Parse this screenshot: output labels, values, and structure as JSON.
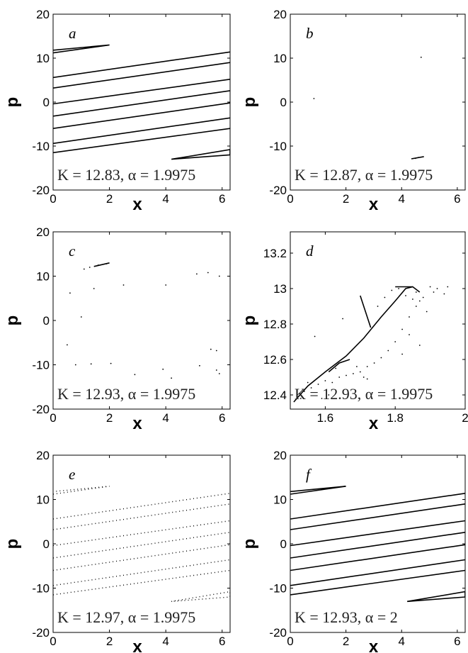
{
  "chart_data": [
    {
      "panel": "a",
      "type": "scatter",
      "xlabel": "x",
      "ylabel": "p",
      "xlim": [
        0,
        6.2832
      ],
      "ylim": [
        -20,
        20
      ],
      "xticks": [
        "0",
        "2",
        "4",
        "6"
      ],
      "yticks": [
        "20",
        "10",
        "0",
        "-10",
        "-20"
      ],
      "annotation": "K = 12.83, α = 1.9975",
      "lines": [
        [
          [
            0,
            11.2
          ],
          [
            2.0,
            13.0
          ],
          [
            0,
            11.8
          ]
        ],
        [
          [
            0,
            5.6
          ],
          [
            6.28,
            11.4
          ]
        ],
        [
          [
            0,
            3.2
          ],
          [
            6.28,
            9.0
          ]
        ],
        [
          [
            0,
            -0.4
          ],
          [
            6.28,
            5.2
          ]
        ],
        [
          [
            0,
            -3.2
          ],
          [
            6.28,
            2.6
          ]
        ],
        [
          [
            0,
            -6.0
          ],
          [
            6.28,
            -0.2
          ]
        ],
        [
          [
            0,
            -9.4
          ],
          [
            6.28,
            -3.6
          ]
        ],
        [
          [
            0,
            -11.5
          ],
          [
            6.28,
            -6.0
          ]
        ],
        [
          [
            4.2,
            -13.0
          ],
          [
            6.28,
            -10.8
          ],
          [
            6.28,
            -12.0
          ],
          [
            4.2,
            -13.0
          ]
        ]
      ],
      "points": []
    },
    {
      "panel": "b",
      "type": "scatter",
      "xlabel": "x",
      "ylabel": "p",
      "xlim": [
        0,
        6.2832
      ],
      "ylim": [
        -20,
        20
      ],
      "xticks": [
        "0",
        "2",
        "4",
        "6"
      ],
      "yticks": [
        "20",
        "10",
        "0",
        "-10",
        "-20"
      ],
      "annotation": "K = 12.87, α = 1.9975",
      "lines": [
        [
          [
            4.35,
            -12.9
          ],
          [
            4.8,
            -12.4
          ]
        ]
      ],
      "points": [
        [
          4.7,
          10.2
        ],
        [
          0.85,
          0.8
        ],
        [
          4.6,
          -12.6
        ],
        [
          4.5,
          -12.8
        ]
      ]
    },
    {
      "panel": "c",
      "type": "scatter",
      "xlabel": "x",
      "ylabel": "p",
      "xlim": [
        0,
        6.2832
      ],
      "ylim": [
        -20,
        20
      ],
      "xticks": [
        "0",
        "2",
        "4",
        "6"
      ],
      "yticks": [
        "20",
        "10",
        "0",
        "-10",
        "-20"
      ],
      "annotation": "K = 12.93, α = 1.9975",
      "lines": [
        [
          [
            1.45,
            12.2
          ],
          [
            2.0,
            13.0
          ]
        ]
      ],
      "points": [
        [
          1.1,
          11.6
        ],
        [
          1.3,
          12.0
        ],
        [
          1.6,
          12.5
        ],
        [
          1.9,
          12.8
        ],
        [
          0.6,
          6.2
        ],
        [
          1.45,
          7.2
        ],
        [
          2.5,
          8.0
        ],
        [
          4.0,
          8.0
        ],
        [
          5.1,
          10.5
        ],
        [
          5.5,
          10.8
        ],
        [
          5.9,
          10.0
        ],
        [
          1.0,
          0.8
        ],
        [
          0.5,
          -5.5
        ],
        [
          5.6,
          -6.5
        ],
        [
          5.8,
          -6.8
        ],
        [
          1.35,
          -9.8
        ],
        [
          2.05,
          -9.7
        ],
        [
          5.2,
          -10.2
        ],
        [
          5.8,
          -11.2
        ],
        [
          3.9,
          -11.0
        ],
        [
          4.2,
          -13.0
        ],
        [
          0.8,
          -10.0
        ],
        [
          5.9,
          -12.0
        ],
        [
          2.9,
          -12.2
        ]
      ]
    },
    {
      "panel": "d",
      "type": "scatter",
      "xlabel": "x",
      "ylabel": "p",
      "xlim": [
        1.5,
        2.0
      ],
      "ylim": [
        12.32,
        13.32
      ],
      "xticks": [
        "1.6",
        "1.8",
        "2"
      ],
      "yticks": [
        "13.2",
        "13",
        "12.8",
        "12.6",
        "12.4"
      ],
      "annotation": "K = 12.93, α = 1.9975",
      "lines": [
        [
          [
            1.51,
            12.36
          ],
          [
            1.55,
            12.45
          ],
          [
            1.6,
            12.53
          ],
          [
            1.66,
            12.62
          ],
          [
            1.71,
            12.72
          ],
          [
            1.76,
            12.84
          ],
          [
            1.8,
            12.93
          ],
          [
            1.83,
            13.0
          ],
          [
            1.85,
            13.01
          ],
          [
            1.87,
            12.98
          ]
        ],
        [
          [
            1.61,
            12.53
          ],
          [
            1.64,
            12.58
          ],
          [
            1.67,
            12.6
          ]
        ],
        [
          [
            1.73,
            12.78
          ],
          [
            1.7,
            12.96
          ]
        ],
        [
          [
            1.8,
            13.01
          ],
          [
            1.85,
            13.01
          ]
        ]
      ],
      "points": [
        [
          1.54,
          12.42
        ],
        [
          1.56,
          12.44
        ],
        [
          1.58,
          12.46
        ],
        [
          1.6,
          12.48
        ],
        [
          1.62,
          12.47
        ],
        [
          1.64,
          12.5
        ],
        [
          1.66,
          12.51
        ],
        [
          1.68,
          12.52
        ],
        [
          1.7,
          12.53
        ],
        [
          1.72,
          12.56
        ],
        [
          1.74,
          12.58
        ],
        [
          1.76,
          12.61
        ],
        [
          1.78,
          12.65
        ],
        [
          1.8,
          12.7
        ],
        [
          1.82,
          12.77
        ],
        [
          1.84,
          12.84
        ],
        [
          1.86,
          12.9
        ],
        [
          1.57,
          12.73
        ],
        [
          1.53,
          12.38
        ],
        [
          1.55,
          12.47
        ],
        [
          1.63,
          12.55
        ],
        [
          1.69,
          12.56
        ],
        [
          1.65,
          12.83
        ],
        [
          1.75,
          12.9
        ],
        [
          1.77,
          12.95
        ],
        [
          1.79,
          12.99
        ],
        [
          1.81,
          13.0
        ],
        [
          1.83,
          12.96
        ],
        [
          1.85,
          12.94
        ],
        [
          1.86,
          12.98
        ],
        [
          1.87,
          12.93
        ],
        [
          1.88,
          12.95
        ],
        [
          1.9,
          13.01
        ],
        [
          1.92,
          13.0
        ],
        [
          1.95,
          13.01
        ],
        [
          1.89,
          12.87
        ],
        [
          1.91,
          12.98
        ],
        [
          1.94,
          12.97
        ],
        [
          1.87,
          12.68
        ],
        [
          1.84,
          12.74
        ],
        [
          1.82,
          12.63
        ],
        [
          1.72,
          12.49
        ],
        [
          1.61,
          12.4
        ],
        [
          1.71,
          12.5
        ],
        [
          1.59,
          12.38
        ]
      ]
    },
    {
      "panel": "e",
      "type": "scatter",
      "xlabel": "x",
      "ylabel": "p",
      "xlim": [
        0,
        6.2832
      ],
      "ylim": [
        -20,
        20
      ],
      "xticks": [
        "0",
        "2",
        "4",
        "6"
      ],
      "yticks": [
        "20",
        "10",
        "0",
        "-10",
        "-20"
      ],
      "annotation": "K = 12.97, α = 1.9975",
      "dotted_lines": [
        [
          [
            0,
            11.2
          ],
          [
            2.0,
            13.0
          ],
          [
            0,
            11.8
          ]
        ],
        [
          [
            0,
            5.6
          ],
          [
            6.28,
            11.4
          ]
        ],
        [
          [
            0,
            3.2
          ],
          [
            6.28,
            9.0
          ]
        ],
        [
          [
            0,
            -0.4
          ],
          [
            6.28,
            5.2
          ]
        ],
        [
          [
            0,
            -3.2
          ],
          [
            6.28,
            2.6
          ]
        ],
        [
          [
            0,
            -6.0
          ],
          [
            6.28,
            -0.2
          ]
        ],
        [
          [
            0,
            -9.4
          ],
          [
            6.28,
            -3.6
          ]
        ],
        [
          [
            0,
            -11.5
          ],
          [
            6.28,
            -6.0
          ]
        ],
        [
          [
            4.2,
            -13.0
          ],
          [
            6.28,
            -10.8
          ],
          [
            6.28,
            -12.0
          ],
          [
            4.2,
            -13.0
          ]
        ]
      ],
      "points": []
    },
    {
      "panel": "f",
      "type": "line",
      "xlabel": "x",
      "ylabel": "p",
      "xlim": [
        0,
        6.2832
      ],
      "ylim": [
        -20,
        20
      ],
      "xticks": [
        "0",
        "2",
        "4",
        "6"
      ],
      "yticks": [
        "20",
        "10",
        "0",
        "-10",
        "-20"
      ],
      "annotation": "K = 12.93, α = 2",
      "lines": [
        [
          [
            0,
            11.2
          ],
          [
            2.0,
            13.0
          ],
          [
            0,
            11.8
          ]
        ],
        [
          [
            0,
            5.6
          ],
          [
            6.28,
            11.4
          ]
        ],
        [
          [
            0,
            3.2
          ],
          [
            6.28,
            9.0
          ]
        ],
        [
          [
            0,
            -0.4
          ],
          [
            6.28,
            5.2
          ]
        ],
        [
          [
            0,
            -3.2
          ],
          [
            6.28,
            2.6
          ]
        ],
        [
          [
            0,
            -6.0
          ],
          [
            6.28,
            -0.2
          ]
        ],
        [
          [
            0,
            -9.4
          ],
          [
            6.28,
            -3.6
          ]
        ],
        [
          [
            0,
            -11.5
          ],
          [
            6.28,
            -6.0
          ]
        ],
        [
          [
            4.2,
            -13.0
          ],
          [
            6.28,
            -10.8
          ],
          [
            6.28,
            -12.0
          ],
          [
            4.2,
            -13.0
          ]
        ]
      ],
      "points": []
    }
  ]
}
